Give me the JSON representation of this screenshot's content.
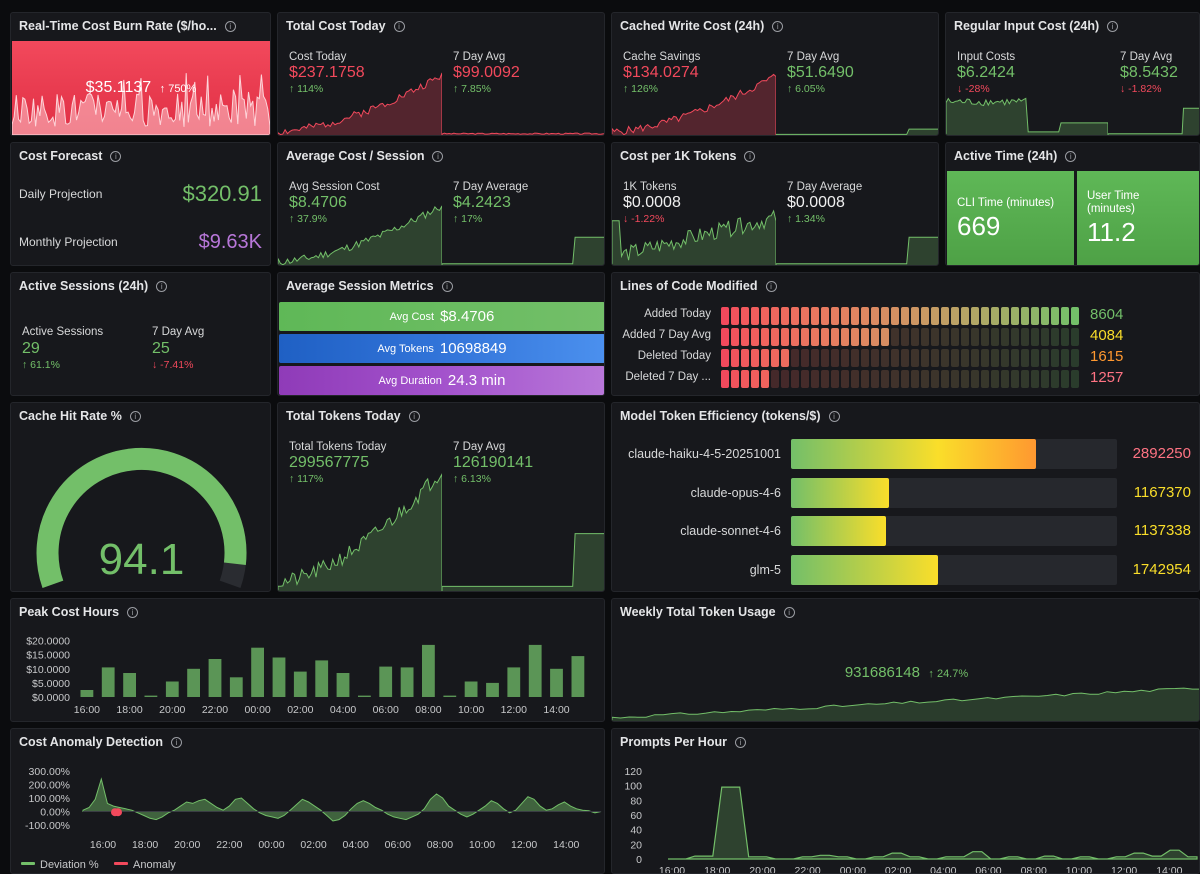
{
  "info_glyph": "i",
  "burn_rate": {
    "title": "Real-Time Cost Burn Rate ($/ho...",
    "value": "$35.1137",
    "delta": "↑ 750%"
  },
  "total_cost": {
    "title": "Total Cost Today",
    "left_label": "Cost Today",
    "left_value": "$237.1758",
    "left_delta": "↑ 114%",
    "right_label": "7 Day Avg",
    "right_value": "$99.0092",
    "right_delta": "↑ 7.85%"
  },
  "cached_write": {
    "title": "Cached Write Cost (24h)",
    "left_label": "Cache Savings",
    "left_value": "$134.0274",
    "left_delta": "↑ 126%",
    "right_label": "7 Day Avg",
    "right_value": "$51.6490",
    "right_delta": "↑ 6.05%"
  },
  "regular_input": {
    "title": "Regular Input Cost (24h)",
    "left_label": "Input Costs",
    "left_value": "$6.2424",
    "left_delta": "↓ -28%",
    "right_label": "7 Day Avg",
    "right_value": "$8.5432",
    "right_delta": "↓ -1.82%"
  },
  "forecast": {
    "title": "Cost Forecast",
    "daily_label": "Daily Projection",
    "daily_value": "$320.91",
    "monthly_label": "Monthly Projection",
    "monthly_value": "$9.63K"
  },
  "avg_cost_session": {
    "title": "Average Cost / Session",
    "left_label": "Avg Session Cost",
    "left_value": "$8.4706",
    "left_delta": "↑ 37.9%",
    "right_label": "7 Day Average",
    "right_value": "$4.2423",
    "right_delta": "↑ 17%"
  },
  "cost_per_1k": {
    "title": "Cost per 1K Tokens",
    "left_label": "1K Tokens",
    "left_value": "$0.0008",
    "left_delta": "↓ -1.22%",
    "right_label": "7 Day Average",
    "right_value": "$0.0008",
    "right_delta": "↑ 1.34%"
  },
  "active_time": {
    "title": "Active Time (24h)",
    "cli_label": "CLI Time (minutes)",
    "cli_value": "669",
    "user_label": "User Time (minutes)",
    "user_value": "11.2"
  },
  "active_sessions": {
    "title": "Active Sessions (24h)",
    "left_label": "Active Sessions",
    "left_value": "29",
    "left_delta": "↑ 61.1%",
    "right_label": "7 Day Avg",
    "right_value": "25",
    "right_delta": "↓ -7.41%"
  },
  "session_metrics": {
    "title": "Average Session Metrics",
    "cost_label": "Avg Cost",
    "cost_value": "$8.4706",
    "tokens_label": "Avg Tokens",
    "tokens_value": "10698849",
    "duration_label": "Avg Duration",
    "duration_value": "24.3 min"
  },
  "loc": {
    "title": "Lines of Code Modified",
    "rows": [
      {
        "label": "Added Today",
        "value": "8604",
        "fraction": 1.0,
        "color": "#73bf69"
      },
      {
        "label": "Added 7 Day Avg",
        "value": "4084",
        "fraction": 0.47,
        "color": "#fade2a"
      },
      {
        "label": "Deleted Today",
        "value": "1615",
        "fraction": 0.19,
        "color": "#ff9830"
      },
      {
        "label": "Deleted 7 Day ...",
        "value": "1257",
        "fraction": 0.15,
        "color": "#ff7383"
      }
    ]
  },
  "cache_hit": {
    "title": "Cache Hit Rate %",
    "value": "94.1",
    "fraction": 0.941
  },
  "total_tokens": {
    "title": "Total Tokens Today",
    "left_label": "Total Tokens Today",
    "left_value": "299567775",
    "left_delta": "↑ 117%",
    "right_label": "7 Day Avg",
    "right_value": "126190141",
    "right_delta": "↑ 6.13%"
  },
  "model_eff": {
    "title": "Model Token Efficiency (tokens/$)",
    "rows": [
      {
        "label": "claude-haiku-4-5-20251001",
        "value": "2892250",
        "fraction": 0.75,
        "color": "#ff7383"
      },
      {
        "label": "claude-opus-4-6",
        "value": "1167370",
        "fraction": 0.3,
        "color": "#fade2a"
      },
      {
        "label": "claude-sonnet-4-6",
        "value": "1137338",
        "fraction": 0.29,
        "color": "#fade2a"
      },
      {
        "label": "glm-5",
        "value": "1742954",
        "fraction": 0.45,
        "color": "#fade2a"
      }
    ]
  },
  "weekly_tokens": {
    "title": "Weekly Total Token Usage",
    "value": "931686148",
    "delta": "↑ 24.7%"
  },
  "chart_data": [
    {
      "type": "bar",
      "title": "Peak Cost Hours",
      "categories": [
        "16:00",
        "17:00",
        "18:00",
        "19:00",
        "20:00",
        "21:00",
        "22:00",
        "23:00",
        "00:00",
        "01:00",
        "02:00",
        "03:00",
        "04:00",
        "05:00",
        "06:00",
        "07:00",
        "08:00",
        "09:00",
        "10:00",
        "11:00",
        "12:00",
        "13:00",
        "14:00",
        "15:00"
      ],
      "values": [
        2.5,
        10.5,
        8.5,
        0.5,
        5.5,
        10.0,
        13.5,
        7.0,
        17.5,
        14.0,
        9.0,
        13.0,
        8.5,
        0.5,
        10.8,
        10.5,
        18.5,
        0.5,
        5.5,
        5.0,
        10.5,
        18.5,
        10.0,
        14.5
      ],
      "y_ticks": [
        "$20.0000",
        "$15.0000",
        "$10.0000",
        "$5.0000",
        "$0.0000"
      ],
      "x_ticks": [
        "16:00",
        "18:00",
        "20:00",
        "22:00",
        "00:00",
        "02:00",
        "04:00",
        "06:00",
        "08:00",
        "10:00",
        "12:00",
        "14:00"
      ],
      "ylim": [
        0,
        22
      ],
      "color": "#73bf69"
    },
    {
      "type": "area",
      "title": "Cost Anomaly Detection",
      "y_ticks": [
        "300.00%",
        "200.00%",
        "100.00%",
        "0.00%",
        "-100.00%"
      ],
      "x_ticks": [
        "16:00",
        "18:00",
        "20:00",
        "22:00",
        "00:00",
        "02:00",
        "04:00",
        "06:00",
        "08:00",
        "10:00",
        "12:00",
        "14:00"
      ],
      "ylim": [
        -100,
        300
      ],
      "series": [
        {
          "name": "Deviation %",
          "color": "#73bf69",
          "values": [
            10,
            30,
            90,
            240,
            60,
            40,
            30,
            20,
            10,
            -10,
            -30,
            -50,
            -60,
            -40,
            -10,
            10,
            40,
            70,
            60,
            80,
            90,
            60,
            30,
            10,
            40,
            90,
            100,
            60,
            20,
            -10,
            -30,
            -40,
            -50,
            -30,
            10,
            50,
            90,
            70,
            40,
            10,
            -30,
            -70,
            -60,
            -30,
            20,
            60,
            80,
            60,
            30,
            10,
            -20,
            -40,
            -50,
            -60,
            -40,
            -20,
            20,
            90,
            130,
            100,
            40,
            10,
            -20,
            -40,
            -20,
            10,
            40,
            80,
            60,
            20,
            -10,
            10,
            60,
            110,
            90,
            40,
            10,
            20,
            50,
            70,
            40,
            20,
            10,
            5,
            -10,
            0
          ]
        },
        {
          "name": "Anomaly",
          "color": "#f2495c",
          "values": [
            null,
            null,
            null,
            null,
            -5,
            -5,
            null
          ]
        }
      ]
    },
    {
      "type": "line",
      "title": "Prompts Per Hour",
      "y_ticks": [
        "120",
        "100",
        "80",
        "60",
        "40",
        "20",
        "0"
      ],
      "x_ticks": [
        "16:00",
        "18:00",
        "20:00",
        "22:00",
        "00:00",
        "02:00",
        "04:00",
        "06:00",
        "08:00",
        "10:00",
        "12:00",
        "14:00"
      ],
      "ylim": [
        0,
        120
      ],
      "color": "#73bf69",
      "values": [
        0,
        0,
        0,
        4,
        4,
        4,
        98,
        98,
        98,
        3,
        3,
        3,
        0,
        0,
        0,
        3,
        3,
        5,
        5,
        3,
        3,
        0,
        0,
        3,
        3,
        8,
        8,
        3,
        3,
        0,
        0,
        3,
        3,
        3,
        10,
        10,
        0,
        0,
        3,
        3,
        0,
        0,
        4,
        4,
        0,
        0,
        3,
        3,
        0,
        0,
        3,
        3,
        8,
        8,
        4,
        4,
        12,
        12,
        3,
        3
      ]
    }
  ],
  "legend": {
    "deviation": "Deviation %",
    "anomaly": "Anomaly"
  },
  "titles": {
    "peak": "Peak Cost Hours",
    "anomaly": "Cost Anomaly Detection",
    "prompts": "Prompts Per Hour"
  }
}
